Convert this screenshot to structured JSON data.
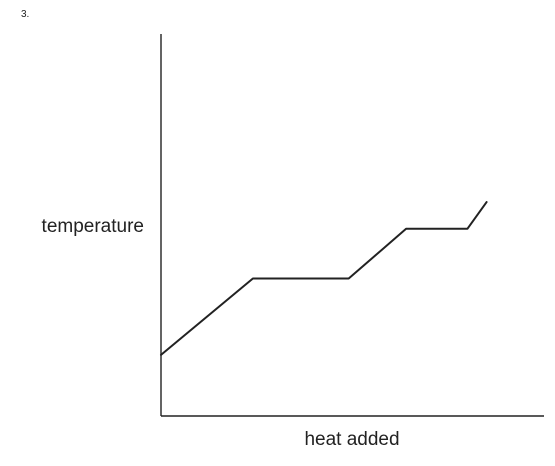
{
  "question": {
    "number": "3."
  },
  "chart_data": {
    "type": "line",
    "title": "",
    "xlabel": "heat added",
    "ylabel": "temperature",
    "xlim": [
      0,
      100
    ],
    "ylim": [
      0,
      100
    ],
    "grid": false,
    "legend": "none",
    "x_ticks": [],
    "y_ticks": [],
    "series": [
      {
        "color": "#222222",
        "points": [
          {
            "x": 0,
            "y": 16
          },
          {
            "x": 24,
            "y": 36
          },
          {
            "x": 49,
            "y": 36
          },
          {
            "x": 64,
            "y": 49
          },
          {
            "x": 80,
            "y": 49
          },
          {
            "x": 85,
            "y": 56
          }
        ]
      }
    ]
  }
}
